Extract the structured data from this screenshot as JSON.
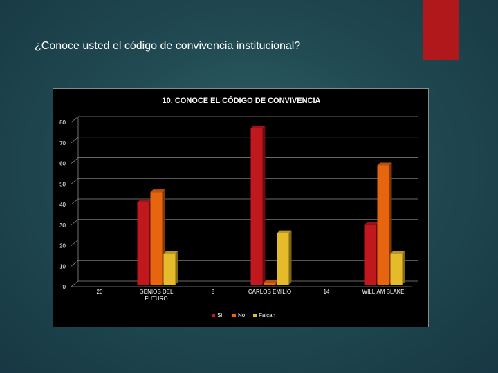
{
  "slide": {
    "title": "¿Conoce usted el código de convivencia institucional?"
  },
  "colors": {
    "accent": "#b0181c",
    "chart_background": "#000000",
    "text": "#ffffff",
    "grid": "#8c8c8c"
  },
  "chart_data": {
    "type": "bar",
    "title": "10. CONOCE EL CÓDIGO DE CONVIVENCIA",
    "xlabel": "",
    "ylabel": "",
    "ylim": [
      0,
      80
    ],
    "yticks": [
      0,
      10,
      20,
      30,
      40,
      50,
      60,
      70,
      80
    ],
    "categories": [
      "20",
      "GENIOS DEL FUTURO",
      "8",
      "CARLOS EMILIO",
      "14",
      "WILLIAM BLAKE"
    ],
    "category_lines": [
      [
        "20"
      ],
      [
        "GENIOS DEL",
        "FUTURO"
      ],
      [
        "8"
      ],
      [
        "CARLOS EMILIO"
      ],
      [
        "14"
      ],
      [
        "WILLIAM BLAKE"
      ]
    ],
    "series": [
      {
        "name": "Si",
        "color": "#c0181c",
        "values": [
          0,
          40,
          0,
          76,
          0,
          29
        ]
      },
      {
        "name": "No",
        "color": "#e8650f",
        "values": [
          0,
          45,
          0,
          1,
          0,
          58
        ]
      },
      {
        "name": "Falcan",
        "color": "#e6bb2b",
        "values": [
          0,
          15,
          0,
          25,
          0,
          15
        ]
      }
    ],
    "grid": true,
    "legend_position": "bottom"
  }
}
